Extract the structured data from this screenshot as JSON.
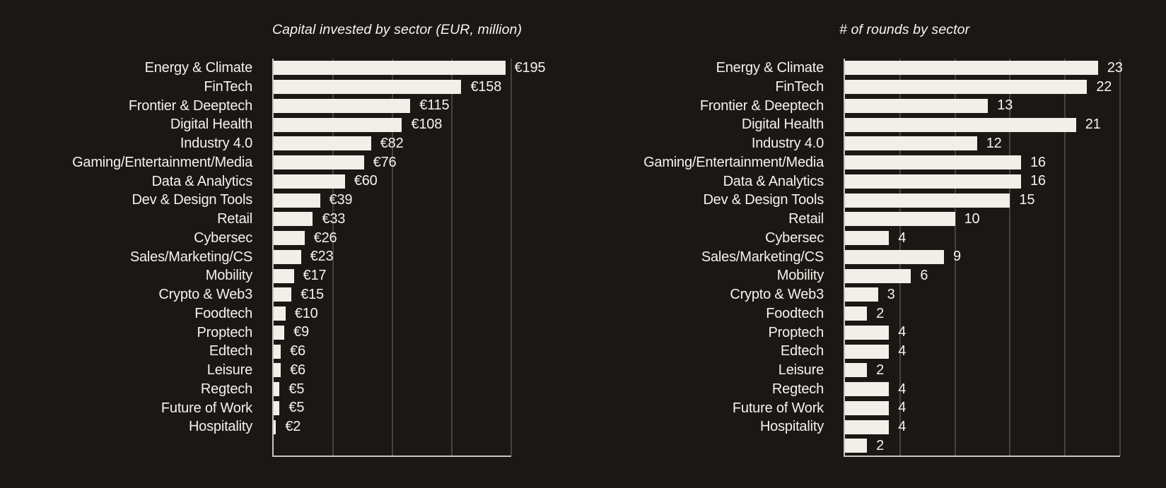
{
  "page": {
    "background_color": "#1b1714",
    "text_color": "#f6f2ec",
    "bar_color": "#f2efe8",
    "gridline_color": "#46423e",
    "axis_color": "#c9c5bf"
  },
  "chart_data": [
    {
      "type": "bar",
      "orientation": "horizontal",
      "title": "Capital invested by sector (EUR, million)",
      "categories": [
        "Energy & Climate",
        "FinTech",
        "Frontier & Deeptech",
        "Digital Health",
        "Industry 4.0",
        "Gaming/Entertainment/Media",
        "Data & Analytics",
        "Dev & Design Tools",
        "Retail",
        "Cybersec",
        "Sales/Marketing/CS",
        "Mobility",
        "Crypto & Web3",
        "Foodtech",
        "Proptech",
        "Edtech",
        "Leisure",
        "Regtech",
        "Future of Work",
        "Hospitality"
      ],
      "values": [
        195,
        158,
        115,
        108,
        82,
        76,
        60,
        39,
        33,
        26,
        23,
        17,
        15,
        10,
        9,
        6,
        6,
        5,
        5,
        2
      ],
      "value_labels": [
        "€195",
        "€158",
        "€115",
        "€108",
        "€82",
        "€76",
        "€60",
        "€39",
        "€33",
        "€26",
        "€23",
        "€17",
        "€15",
        "€10",
        "€9",
        "€6",
        "€6",
        "€5",
        "€5",
        "€2"
      ],
      "xlim": [
        0,
        200
      ],
      "gridline_step": 50,
      "grid": true,
      "legend": "none",
      "xlabel": "",
      "ylabel": ""
    },
    {
      "type": "bar",
      "orientation": "horizontal",
      "title": "# of rounds by sector",
      "categories": [
        "Energy & Climate",
        "FinTech",
        "Frontier & Deeptech",
        "Digital Health",
        "Industry 4.0",
        "Gaming/Entertainment/Media",
        "Data & Analytics",
        "Dev & Design Tools",
        "Retail",
        "Cybersec",
        "Sales/Marketing/CS",
        "Mobility",
        "Crypto & Web3",
        "Foodtech",
        "Proptech",
        "Edtech",
        "Leisure",
        "Regtech",
        "Future of Work",
        "Hospitality",
        ""
      ],
      "values": [
        23,
        22,
        13,
        21,
        12,
        16,
        16,
        15,
        10,
        4,
        9,
        6,
        3,
        2,
        4,
        4,
        2,
        4,
        4,
        4,
        2
      ],
      "value_labels": [
        "23",
        "22",
        "13",
        "21",
        "12",
        "16",
        "16",
        "15",
        "10",
        "4",
        "9",
        "6",
        "3",
        "2",
        "4",
        "4",
        "2",
        "4",
        "4",
        "4",
        "2"
      ],
      "xlim": [
        0,
        25
      ],
      "gridline_step": 5,
      "grid": true,
      "legend": "none",
      "xlabel": "",
      "ylabel": ""
    }
  ]
}
